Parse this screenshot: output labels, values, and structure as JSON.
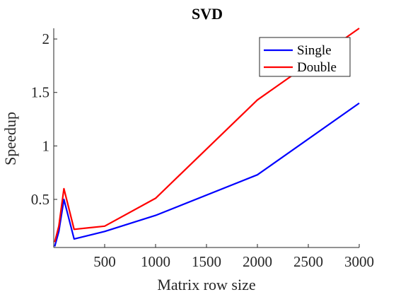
{
  "chart_data": {
    "type": "line",
    "title": "SVD",
    "xlabel": "Matrix row size",
    "ylabel": "Speedup",
    "xlim": [
      0,
      3000
    ],
    "ylim": [
      0.05,
      2.1
    ],
    "xticks": [
      500,
      1000,
      1500,
      2000,
      2500,
      3000
    ],
    "yticks": [
      0.5,
      1,
      1.5,
      2
    ],
    "xtick_labels": [
      "500",
      "1000",
      "1500",
      "2000",
      "2500",
      "3000"
    ],
    "ytick_labels": [
      "0.5",
      "1",
      "1.5",
      "2"
    ],
    "legend_position": "top-right",
    "grid": false,
    "series": [
      {
        "name": "Single",
        "color": "#0000ff",
        "x": [
          10,
          50,
          100,
          200,
          500,
          1000,
          2000,
          3000
        ],
        "y": [
          0.06,
          0.2,
          0.5,
          0.13,
          0.2,
          0.35,
          0.73,
          1.4
        ]
      },
      {
        "name": "Double",
        "color": "#ff0000",
        "x": [
          10,
          50,
          100,
          200,
          500,
          1000,
          2000,
          3000
        ],
        "y": [
          0.1,
          0.25,
          0.6,
          0.22,
          0.25,
          0.51,
          1.43,
          2.1
        ]
      }
    ]
  }
}
